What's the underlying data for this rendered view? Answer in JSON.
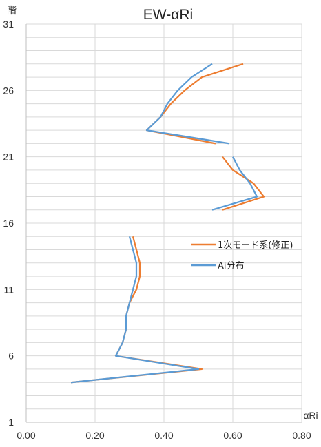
{
  "chart_data": {
    "type": "line",
    "title": "EW-αRi",
    "xlabel": "αRi",
    "ylabel": "階",
    "xlim": [
      0,
      0.8
    ],
    "ylim": [
      1,
      31
    ],
    "x_ticks": [
      "0.00",
      "0.20",
      "0.40",
      "0.60",
      "0.80"
    ],
    "y_ticks": [
      "1",
      "6",
      "11",
      "16",
      "21",
      "26",
      "31"
    ],
    "grid": {
      "vertical": true,
      "horizontal": true,
      "horizontal_step": 1
    },
    "legend_position": "right",
    "series": [
      {
        "name": "1次モード系(修正)",
        "color": "#ed7d31",
        "segments": [
          [
            [
              0.13,
              4
            ],
            [
              0.51,
              5
            ],
            [
              0.26,
              6
            ],
            [
              0.28,
              7
            ],
            [
              0.29,
              8
            ],
            [
              0.29,
              9
            ],
            [
              0.3,
              10
            ],
            [
              0.32,
              11
            ],
            [
              0.33,
              12
            ],
            [
              0.33,
              13
            ],
            [
              0.32,
              14
            ],
            [
              0.31,
              15
            ]
          ],
          [
            [
              0.57,
              17
            ],
            [
              0.69,
              18
            ],
            [
              0.66,
              19
            ],
            [
              0.6,
              20
            ],
            [
              0.57,
              21
            ]
          ],
          [
            [
              0.55,
              22
            ],
            [
              0.35,
              23
            ],
            [
              0.39,
              24
            ],
            [
              0.42,
              25
            ],
            [
              0.46,
              26
            ],
            [
              0.51,
              27
            ],
            [
              0.63,
              28
            ]
          ]
        ]
      },
      {
        "name": "Ai分布",
        "color": "#5b9bd5",
        "segments": [
          [
            [
              0.13,
              4
            ],
            [
              0.5,
              5
            ],
            [
              0.26,
              6
            ],
            [
              0.28,
              7
            ],
            [
              0.29,
              8
            ],
            [
              0.29,
              9
            ],
            [
              0.3,
              10
            ],
            [
              0.31,
              11
            ],
            [
              0.32,
              12
            ],
            [
              0.32,
              13
            ],
            [
              0.31,
              14
            ],
            [
              0.3,
              15
            ]
          ],
          [
            [
              0.54,
              17
            ],
            [
              0.67,
              18
            ],
            [
              0.65,
              19
            ],
            [
              0.62,
              20
            ],
            [
              0.6,
              21
            ]
          ],
          [
            [
              0.59,
              22
            ],
            [
              0.35,
              23
            ],
            [
              0.39,
              24
            ],
            [
              0.41,
              25
            ],
            [
              0.44,
              26
            ],
            [
              0.48,
              27
            ],
            [
              0.54,
              28
            ]
          ]
        ]
      }
    ]
  }
}
